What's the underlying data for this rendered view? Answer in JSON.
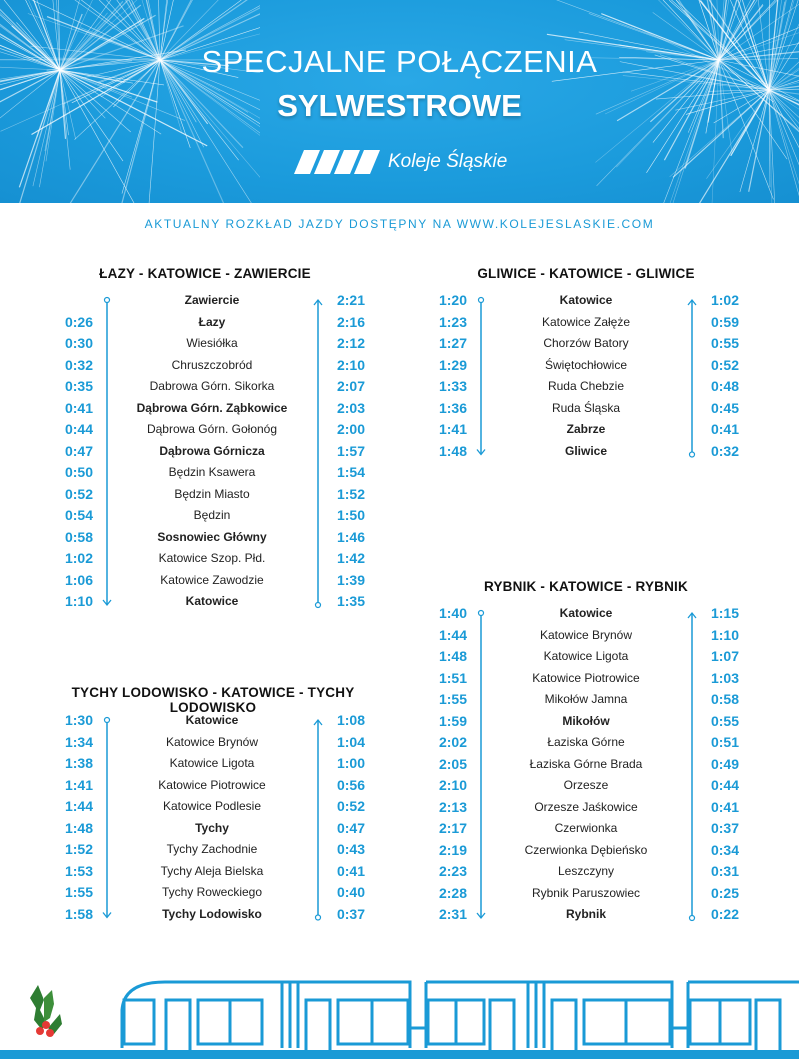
{
  "header": {
    "title_line1": "SPECJALNE POŁĄCZENIA",
    "title_line2": "SYLWESTROWE",
    "logo_text": "Koleje Śląskie",
    "brand_color": "#1b9bdc"
  },
  "subtitle": "AKTUALNY ROZKŁAD JAZDY DOSTĘPNY NA WWW.KOLEJESLASKIE.COM",
  "accent_color": "#1a9ad6",
  "timetables": [
    {
      "title": "ŁAZY - KATOWICE - ZAWIERCIE",
      "rows": [
        {
          "dep": "",
          "station": "Zawiercie",
          "bold": true,
          "ret": "2:21"
        },
        {
          "dep": "0:26",
          "station": "Łazy",
          "bold": true,
          "ret": "2:16"
        },
        {
          "dep": "0:30",
          "station": "Wiesiółka",
          "bold": false,
          "ret": "2:12"
        },
        {
          "dep": "0:32",
          "station": "Chruszczobród",
          "bold": false,
          "ret": "2:10"
        },
        {
          "dep": "0:35",
          "station": "Dabrowa Górn. Sikorka",
          "bold": false,
          "ret": "2:07"
        },
        {
          "dep": "0:41",
          "station": "Dąbrowa Górn. Ząbkowice",
          "bold": true,
          "ret": "2:03"
        },
        {
          "dep": "0:44",
          "station": "Dąbrowa Górn. Gołonóg",
          "bold": false,
          "ret": "2:00"
        },
        {
          "dep": "0:47",
          "station": "Dąbrowa Górnicza",
          "bold": true,
          "ret": "1:57"
        },
        {
          "dep": "0:50",
          "station": "Będzin Ksawera",
          "bold": false,
          "ret": "1:54"
        },
        {
          "dep": "0:52",
          "station": "Będzin Miasto",
          "bold": false,
          "ret": "1:52"
        },
        {
          "dep": "0:54",
          "station": "Będzin",
          "bold": false,
          "ret": "1:50"
        },
        {
          "dep": "0:58",
          "station": "Sosnowiec Główny",
          "bold": true,
          "ret": "1:46"
        },
        {
          "dep": "1:02",
          "station": "Katowice Szop. Płd.",
          "bold": false,
          "ret": "1:42"
        },
        {
          "dep": "1:06",
          "station": "Katowice Zawodzie",
          "bold": false,
          "ret": "1:39"
        },
        {
          "dep": "1:10",
          "station": "Katowice",
          "bold": true,
          "ret": "1:35"
        }
      ]
    },
    {
      "title": "GLIWICE - KATOWICE - GLIWICE",
      "rows": [
        {
          "dep": "1:20",
          "station": "Katowice",
          "bold": true,
          "ret": "1:02"
        },
        {
          "dep": "1:23",
          "station": "Katowice Załęże",
          "bold": false,
          "ret": "0:59"
        },
        {
          "dep": "1:27",
          "station": "Chorzów Batory",
          "bold": false,
          "ret": "0:55"
        },
        {
          "dep": "1:29",
          "station": "Świętochłowice",
          "bold": false,
          "ret": "0:52"
        },
        {
          "dep": "1:33",
          "station": "Ruda Chebzie",
          "bold": false,
          "ret": "0:48"
        },
        {
          "dep": "1:36",
          "station": "Ruda Śląska",
          "bold": false,
          "ret": "0:45"
        },
        {
          "dep": "1:41",
          "station": "Zabrze",
          "bold": true,
          "ret": "0:41"
        },
        {
          "dep": "1:48",
          "station": "Gliwice",
          "bold": true,
          "ret": "0:32"
        }
      ]
    },
    {
      "title": "RYBNIK - KATOWICE - RYBNIK",
      "rows": [
        {
          "dep": "1:40",
          "station": "Katowice",
          "bold": true,
          "ret": "1:15"
        },
        {
          "dep": "1:44",
          "station": "Katowice Brynów",
          "bold": false,
          "ret": "1:10"
        },
        {
          "dep": "1:48",
          "station": "Katowice Ligota",
          "bold": false,
          "ret": "1:07"
        },
        {
          "dep": "1:51",
          "station": "Katowice Piotrowice",
          "bold": false,
          "ret": "1:03"
        },
        {
          "dep": "1:55",
          "station": "Mikołów Jamna",
          "bold": false,
          "ret": "0:58"
        },
        {
          "dep": "1:59",
          "station": "Mikołów",
          "bold": true,
          "ret": "0:55"
        },
        {
          "dep": "2:02",
          "station": "Łaziska Górne",
          "bold": false,
          "ret": "0:51"
        },
        {
          "dep": "2:05",
          "station": "Łaziska Górne Brada",
          "bold": false,
          "ret": "0:49"
        },
        {
          "dep": "2:10",
          "station": "Orzesze",
          "bold": false,
          "ret": "0:44"
        },
        {
          "dep": "2:13",
          "station": "Orzesze Jaśkowice",
          "bold": false,
          "ret": "0:41"
        },
        {
          "dep": "2:17",
          "station": "Czerwionka",
          "bold": false,
          "ret": "0:37"
        },
        {
          "dep": "2:19",
          "station": "Czerwionka Dębieńsko",
          "bold": false,
          "ret": "0:34"
        },
        {
          "dep": "2:23",
          "station": "Leszczyny",
          "bold": false,
          "ret": "0:31"
        },
        {
          "dep": "2:28",
          "station": "Rybnik Paruszowiec",
          "bold": false,
          "ret": "0:25"
        },
        {
          "dep": "2:31",
          "station": "Rybnik",
          "bold": true,
          "ret": "0:22"
        }
      ]
    },
    {
      "title": "TYCHY LODOWISKO - KATOWICE - TYCHY LODOWISKO",
      "rows": [
        {
          "dep": "1:30",
          "station": "Katowice",
          "bold": true,
          "ret": "1:08"
        },
        {
          "dep": "1:34",
          "station": "Katowice Brynów",
          "bold": false,
          "ret": "1:04"
        },
        {
          "dep": "1:38",
          "station": "Katowice Ligota",
          "bold": false,
          "ret": "1:00"
        },
        {
          "dep": "1:41",
          "station": "Katowice Piotrowice",
          "bold": false,
          "ret": "0:56"
        },
        {
          "dep": "1:44",
          "station": "Katowice Podlesie",
          "bold": false,
          "ret": "0:52"
        },
        {
          "dep": "1:48",
          "station": "Tychy",
          "bold": true,
          "ret": "0:47"
        },
        {
          "dep": "1:52",
          "station": "Tychy Zachodnie",
          "bold": false,
          "ret": "0:43"
        },
        {
          "dep": "1:53",
          "station": "Tychy Aleja Bielska",
          "bold": false,
          "ret": "0:41"
        },
        {
          "dep": "1:55",
          "station": "Tychy Roweckiego",
          "bold": false,
          "ret": "0:40"
        },
        {
          "dep": "1:58",
          "station": "Tychy Lodowisko",
          "bold": true,
          "ret": "0:37"
        }
      ]
    }
  ]
}
